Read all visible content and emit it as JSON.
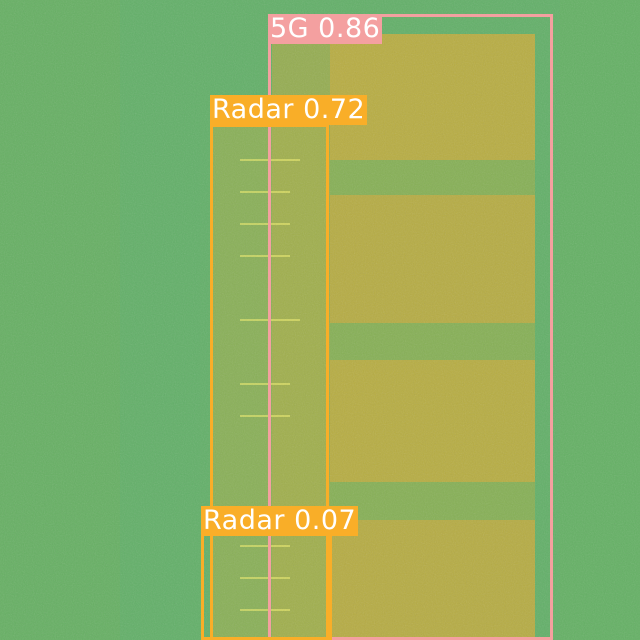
{
  "colors": {
    "background": "#5fae6a",
    "energy": "#c9ad3a",
    "class_5g": "#f4a0a0",
    "class_radar": "#f9ae28"
  },
  "detections": [
    {
      "class": "5G",
      "score": "0.86",
      "label": "5G 0.86",
      "color": "#f4a0a0"
    },
    {
      "class": "Radar",
      "score": "0.72",
      "label": "Radar 0.72",
      "color": "#f9ae28"
    },
    {
      "class": "Radar",
      "score": "0.07",
      "label": "Radar 0.07",
      "color": "#f9ae28"
    }
  ]
}
